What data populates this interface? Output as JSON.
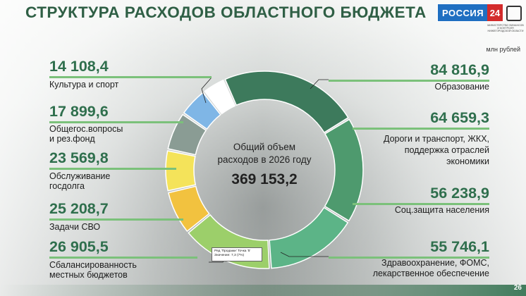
{
  "title": "СТРУКТУРА РАСХОДОВ ОБЛАСТНОГО БЮДЖЕТА",
  "logo": {
    "text": "РОССИЯ",
    "number": "24"
  },
  "ministry_text": "МИНИСТЕРСТВО ФИНАНСОВ И КОНТРОЛЯ НИЖЕГОРОДСКОЙ ОБЛАСТИ",
  "unit": "млн рублей",
  "center": {
    "line1": "Общий объем",
    "line2": "расходов в 2026 году",
    "total": "369 153,2"
  },
  "tooltip": {
    "line1": "Ряд 'Продажи' Точка '5'",
    "line2": "Значение: 7,3 (7%)"
  },
  "page_number": "26",
  "colors": {
    "title": "#2f5f45",
    "value_text": "#2f6f4d",
    "accent_bar": "#7bc17a"
  },
  "chart_data": {
    "type": "pie",
    "variant": "donut",
    "unit": "млн рублей",
    "total": 369153.2,
    "slices": [
      {
        "label": "Образование",
        "value": 84816.9,
        "display": "84 816,9",
        "color": "#3d7a5c"
      },
      {
        "label": "Дороги и транспорт, ЖКХ, поддержка отраслей экономики",
        "value": 64659.3,
        "display": "64 659,3",
        "color": "#4e9a6e"
      },
      {
        "label": "Соц.защита населения",
        "value": 56238.9,
        "display": "56 238,9",
        "color": "#5cb487"
      },
      {
        "label": "Здравоохранение, ФОМС, лекарственное обеспечение",
        "value": 55746.1,
        "display": "55 746,1",
        "color": "#9ccf6a"
      },
      {
        "label": "Сбалансированность местных бюджетов",
        "value": 26905.5,
        "display": "26 905,5",
        "color": "#f2c23f"
      },
      {
        "label": "Задачи СВО",
        "value": 25208.7,
        "display": "25 208,7",
        "color": "#f4e35a"
      },
      {
        "label": "Обслуживание госдолга",
        "value": 23569.8,
        "display": "23 569,8",
        "color": "#8a9c94"
      },
      {
        "label": "Общегос.вопросы и рез.фонд",
        "value": 17899.6,
        "display": "17 899,6",
        "color": "#7fb6e6"
      },
      {
        "label": "Культура и спорт",
        "value": 14108.4,
        "display": "14 108,4",
        "color": "#ffffff"
      }
    ]
  },
  "left_items": [
    {
      "value": "14 108,4",
      "label1": "Культура и спорт",
      "label2": ""
    },
    {
      "value": "17 899,6",
      "label1": "Общегос.вопросы",
      "label2": "и рез.фонд"
    },
    {
      "value": "23 569,8",
      "label1": "Обслуживание",
      "label2": "госдолга"
    },
    {
      "value": "25 208,7",
      "label1": "Задачи СВО",
      "label2": ""
    },
    {
      "value": "26 905,5",
      "label1": "Сбалансированность",
      "label2": "местных бюджетов"
    }
  ],
  "right_items": [
    {
      "value": "84 816,9",
      "label1": "Образование",
      "label2": "",
      "label3": ""
    },
    {
      "value": "64 659,3",
      "label1": "Дороги и транспорт, ЖКХ,",
      "label2": "поддержка отраслей",
      "label3": "экономики"
    },
    {
      "value": "56 238,9",
      "label1": "Соц.защита населения",
      "label2": "",
      "label3": ""
    },
    {
      "value": "55 746,1",
      "label1": "Здравоохранение, ФОМС,",
      "label2": "лекарственное обеспечение",
      "label3": ""
    }
  ]
}
